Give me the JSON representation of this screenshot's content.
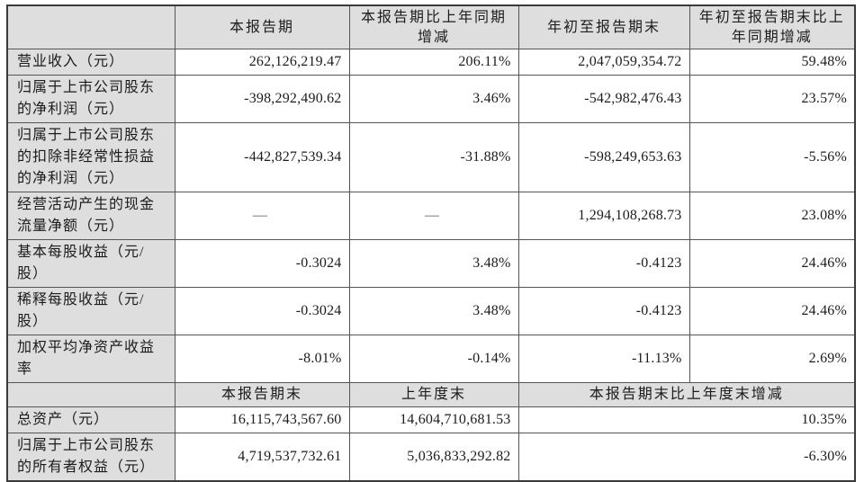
{
  "table": {
    "top_headers": [
      "本报告期",
      "本报告期比上年同期增减",
      "年初至报告期末",
      "年初至报告期末比上年同期增减"
    ],
    "rows": [
      {
        "label": "营业收入（元）",
        "values": [
          "262,126,219.47",
          "206.11%",
          "2,047,059,354.72",
          "59.48%"
        ]
      },
      {
        "label": "归属于上市公司股东的净利润（元）",
        "values": [
          "-398,292,490.62",
          "3.46%",
          "-542,982,476.43",
          "23.57%"
        ]
      },
      {
        "label": "归属于上市公司股东的扣除非经常性损益的净利润（元）",
        "values": [
          "-442,827,539.34",
          "-31.88%",
          "-598,249,653.63",
          "-5.56%"
        ]
      },
      {
        "label": "经营活动产生的现金流量净额（元）",
        "values": [
          "—",
          "—",
          "1,294,108,268.73",
          "23.08%"
        ]
      },
      {
        "label": "基本每股收益（元/股）",
        "values": [
          "-0.3024",
          "3.48%",
          "-0.4123",
          "24.46%"
        ]
      },
      {
        "label": "稀释每股收益（元/股）",
        "values": [
          "-0.3024",
          "3.48%",
          "-0.4123",
          "24.46%"
        ]
      },
      {
        "label": "加权平均净资产收益率",
        "values": [
          "-8.01%",
          "-0.14%",
          "-11.13%",
          "2.69%"
        ]
      }
    ],
    "bottom_headers": [
      "本报告期末",
      "上年度末",
      "本报告期末比上年度末增减"
    ],
    "bottom_rows": [
      {
        "label": "总资产（元）",
        "values": [
          "16,115,743,567.60",
          "14,604,710,681.53",
          "10.35%"
        ]
      },
      {
        "label": "归属于上市公司股东的所有者权益（元）",
        "values": [
          "4,719,537,732.61",
          "5,036,833,292.82",
          "-6.30%"
        ]
      }
    ]
  },
  "colors": {
    "shaded_bg": "#dedede",
    "border": "#555555",
    "text": "#1c1c1c"
  }
}
